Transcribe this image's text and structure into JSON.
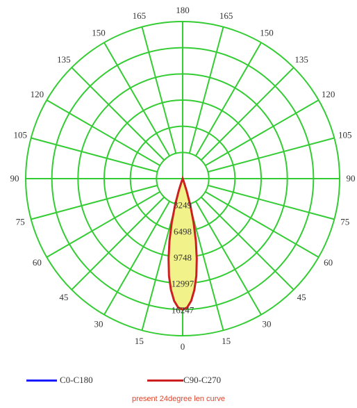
{
  "chart_data": {
    "type": "polar",
    "angle_labels": [
      "180",
      "165",
      "150",
      "135",
      "120",
      "105",
      "90",
      "75",
      "60",
      "45",
      "30",
      "15",
      "0"
    ],
    "max_value": 16247,
    "radial_value_labels": [
      {
        "r": 3249,
        "label": "3249"
      },
      {
        "r": 6498,
        "label": "6498"
      },
      {
        "r": 9748,
        "label": "9748"
      },
      {
        "r": 12997,
        "label": "12997"
      },
      {
        "r": 16247,
        "label": "16247"
      }
    ],
    "series": [
      {
        "name": "C0-C180",
        "color": "#1a1aff",
        "points": [
          [
            0,
            16247
          ],
          [
            2,
            16000
          ],
          [
            4,
            15200
          ],
          [
            6,
            13900
          ],
          [
            8,
            12200
          ],
          [
            10,
            10100
          ],
          [
            12,
            7900
          ],
          [
            14,
            5600
          ],
          [
            16,
            3400
          ],
          [
            18,
            1600
          ],
          [
            20,
            400
          ],
          [
            22,
            0
          ]
        ]
      },
      {
        "name": "C90-C270",
        "color": "#cc1f1f",
        "points": [
          [
            0,
            16247
          ],
          [
            2,
            16000
          ],
          [
            4,
            15200
          ],
          [
            6,
            13900
          ],
          [
            8,
            12200
          ],
          [
            10,
            10100
          ],
          [
            12,
            7900
          ],
          [
            14,
            5600
          ],
          [
            16,
            3400
          ],
          [
            18,
            1600
          ],
          [
            20,
            400
          ],
          [
            22,
            0
          ]
        ]
      }
    ],
    "colors": {
      "grid": "#33cc33",
      "fill": "#f2f28a"
    },
    "grid": true,
    "legend_placement": "bottom"
  },
  "caption": {
    "text": "present 24degree len curve",
    "color": "#e0442a"
  }
}
